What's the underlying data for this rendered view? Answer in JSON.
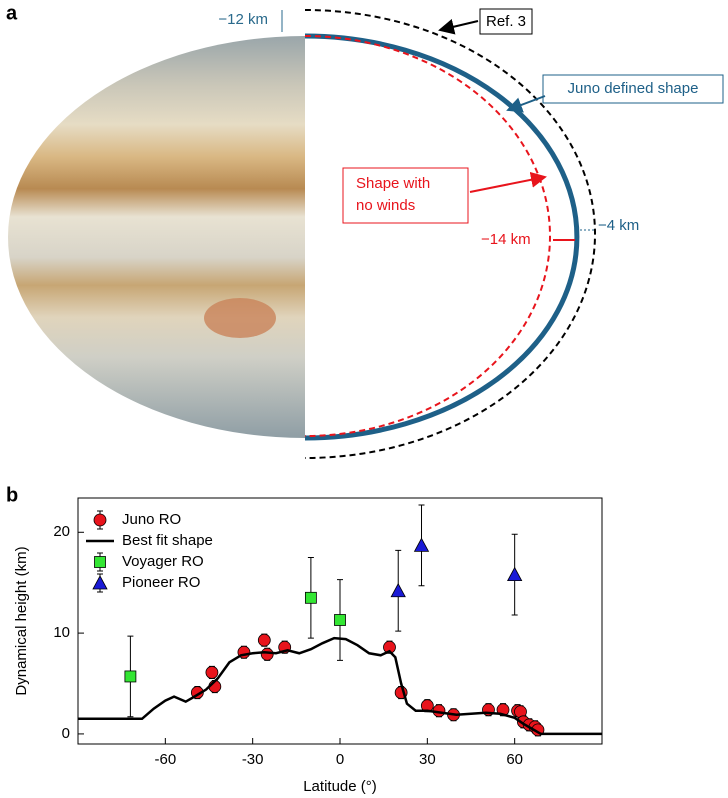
{
  "panel_a": {
    "label": "a",
    "annotations": [
      {
        "text": "−12 km"
      },
      {
        "text": "Ref. 3"
      },
      {
        "text": "Juno defined shape"
      },
      {
        "lines": [
          "Shape with",
          "no winds"
        ]
      },
      {
        "text": "−14 km"
      },
      {
        "text": "−4 km"
      }
    ]
  },
  "chart_data": {
    "type": "scatter",
    "panel_label": "b",
    "xlabel": "Latitude (°)",
    "ylabel": "Dynamical height (km)",
    "xlim": [
      -90,
      90
    ],
    "ylim": [
      -1,
      23.4
    ],
    "xticks": [
      -60,
      -30,
      0,
      30,
      60
    ],
    "yticks": [
      0,
      10,
      20
    ],
    "legend": "upper left",
    "series": [
      {
        "name": "Juno RO",
        "marker": "circle",
        "color": "#e8141c",
        "x": [
          -49,
          -44,
          -43,
          -33,
          -26,
          -25,
          -19,
          17,
          21,
          30,
          34,
          39,
          51,
          56,
          61,
          62,
          63,
          65,
          67,
          68
        ],
        "y": [
          4.1,
          6.1,
          4.7,
          8.1,
          9.3,
          7.9,
          8.6,
          8.6,
          4.1,
          2.8,
          2.3,
          1.9,
          2.4,
          2.4,
          2.3,
          2.2,
          1.2,
          0.9,
          0.7,
          0.4
        ],
        "errors": [
          0.6,
          0.6,
          0.6,
          0.6,
          0.6,
          0.6,
          0.6,
          0.6,
          0.6,
          0.6,
          0.6,
          0.6,
          0.6,
          0.6,
          0.6,
          0.6,
          0.6,
          0.6,
          0.6,
          0.6
        ]
      },
      {
        "name": "Best fit shape",
        "marker": "line",
        "color": "#000000",
        "x": [
          -90,
          -68,
          -64,
          -60,
          -57,
          -53,
          -50,
          -46,
          -42,
          -38,
          -34,
          -30,
          -26,
          -22,
          -18,
          -14,
          -10,
          -6,
          -2,
          2,
          6,
          10,
          14,
          17,
          19,
          21,
          23,
          26,
          30,
          35,
          40,
          45,
          50,
          55,
          60,
          63,
          66,
          69,
          90
        ],
        "y": [
          1.5,
          1.5,
          2.5,
          3.3,
          3.7,
          3.2,
          3.7,
          4.4,
          5.5,
          7.1,
          7.8,
          8.0,
          8.1,
          8.0,
          8.3,
          8.0,
          8.4,
          9.0,
          9.5,
          9.4,
          8.8,
          8.0,
          7.8,
          8.2,
          7.6,
          5.0,
          3.0,
          2.3,
          2.3,
          2.1,
          1.9,
          2.0,
          2.1,
          2.0,
          1.6,
          1.0,
          0.5,
          0,
          0
        ]
      },
      {
        "name": "Voyager RO",
        "marker": "square",
        "color": "#33e633",
        "x": [
          -72,
          -10,
          0
        ],
        "y": [
          5.7,
          13.5,
          11.3
        ],
        "errors": [
          4,
          4,
          4
        ]
      },
      {
        "name": "Pioneer RO",
        "marker": "triangle",
        "color": "#1a1ad6",
        "x": [
          20,
          28,
          60
        ],
        "y": [
          14.2,
          18.7,
          15.8
        ],
        "errors": [
          4,
          4,
          4
        ]
      }
    ]
  }
}
